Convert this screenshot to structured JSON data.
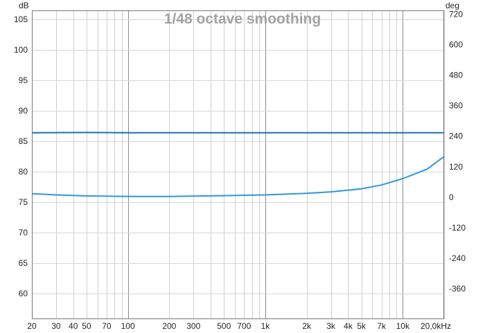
{
  "chart_data": {
    "type": "line",
    "title": "1/48 octave smoothing",
    "left_axis_unit": "dB",
    "right_axis_unit": "deg",
    "x_scale": "log",
    "xlim": [
      20,
      20000
    ],
    "ylim_left": [
      55.8,
      106.5
    ],
    "ylim_right": [
      -480,
      735
    ],
    "x_ticks": [
      {
        "value": 20,
        "label": "20"
      },
      {
        "value": 30,
        "label": "30"
      },
      {
        "value": 40,
        "label": "40"
      },
      {
        "value": 50,
        "label": "50"
      },
      {
        "value": 70,
        "label": "70"
      },
      {
        "value": 100,
        "label": "100"
      },
      {
        "value": 200,
        "label": "200"
      },
      {
        "value": 300,
        "label": "300"
      },
      {
        "value": 500,
        "label": "500"
      },
      {
        "value": 700,
        "label": "700"
      },
      {
        "value": 1000,
        "label": "1k"
      },
      {
        "value": 2000,
        "label": "2k"
      },
      {
        "value": 3000,
        "label": "3k"
      },
      {
        "value": 4000,
        "label": "4k"
      },
      {
        "value": 5000,
        "label": "5k"
      },
      {
        "value": 7000,
        "label": "7k"
      },
      {
        "value": 10000,
        "label": "10k"
      },
      {
        "value": 20000,
        "label": "20,0kHz"
      }
    ],
    "y_ticks_left": [
      60,
      65,
      70,
      75,
      80,
      85,
      90,
      95,
      100,
      105
    ],
    "y_ticks_right": [
      -360,
      -240,
      -120,
      0,
      120,
      240,
      360,
      480,
      600,
      720
    ],
    "grid": true,
    "series": [
      {
        "axis": "left",
        "color": "#1a6fb5",
        "x": [
          20,
          50,
          100,
          1000,
          10000,
          20000
        ],
        "y": [
          86.4,
          86.45,
          86.4,
          86.4,
          86.4,
          86.4
        ]
      },
      {
        "axis": "right",
        "color": "#2f95e0",
        "x": [
          20,
          30,
          50,
          100,
          200,
          300,
          500,
          1000,
          2000,
          3000,
          5000,
          7000,
          10000,
          15000,
          20000
        ],
        "y": [
          14,
          9,
          5,
          3,
          3,
          4,
          6,
          9,
          15,
          21,
          33,
          48,
          73,
          110,
          160
        ]
      }
    ]
  }
}
